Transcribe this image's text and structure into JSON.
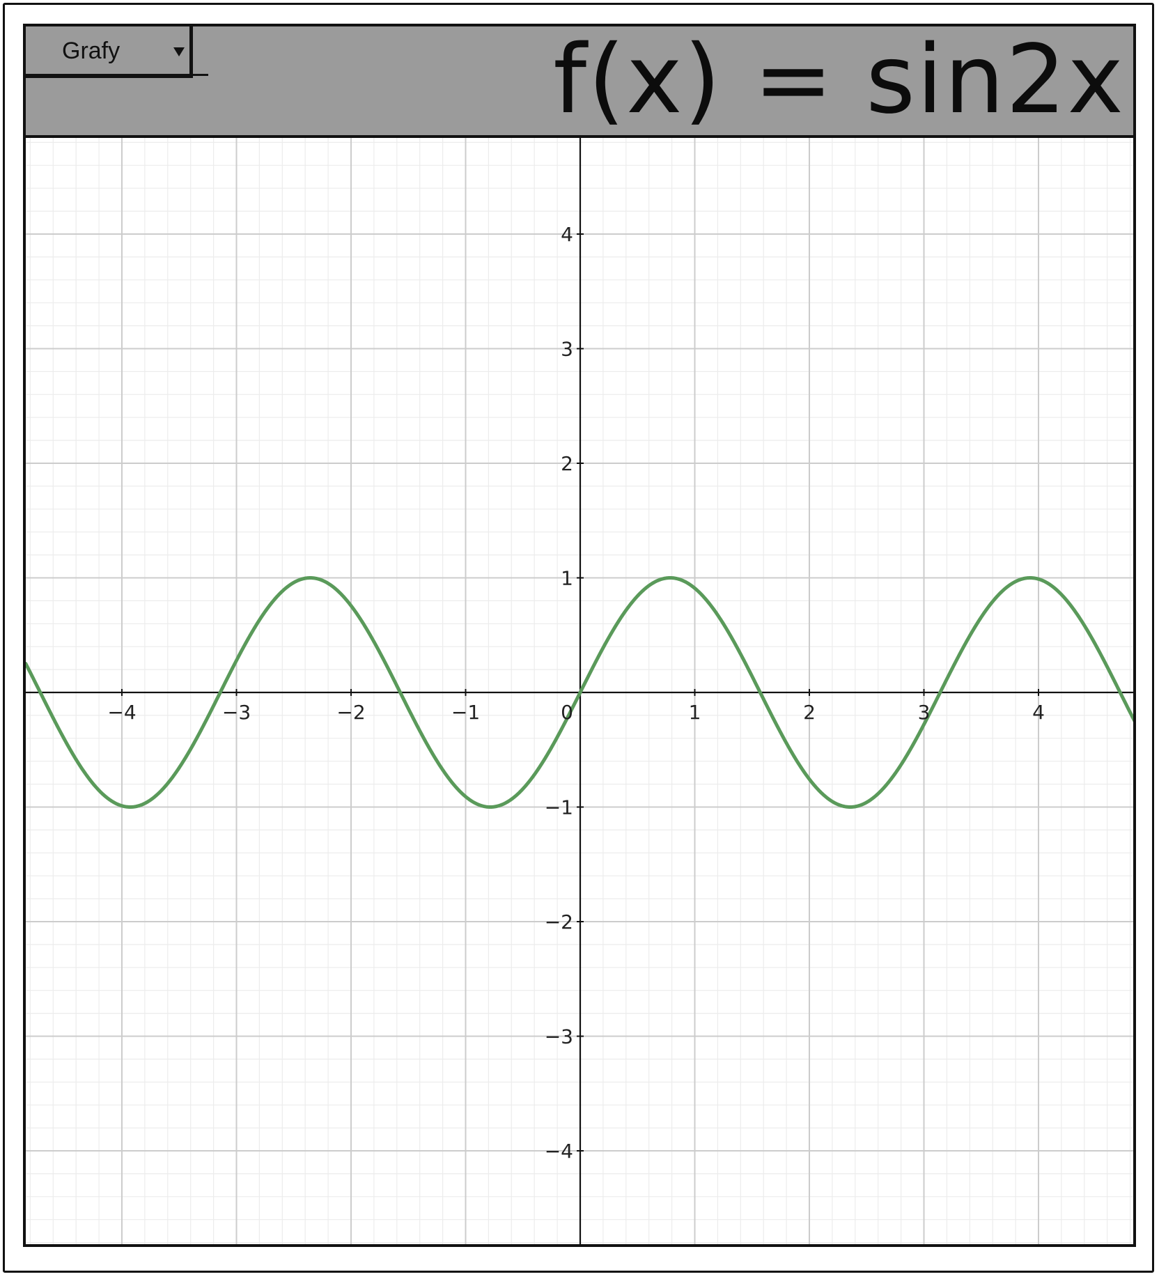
{
  "toolbar": {
    "dropdown_label": "Grafy"
  },
  "header": {
    "function_label": "f(x) = sin2x"
  },
  "chart_data": {
    "type": "line",
    "function": "sin(2x)",
    "title": "",
    "xlabel": "",
    "ylabel": "",
    "xlim": [
      -4.84,
      4.84
    ],
    "ylim": [
      -4.84,
      4.84
    ],
    "grid": true,
    "minor_grid": true,
    "x_ticks": [
      {
        "value": -4,
        "label": "−4"
      },
      {
        "value": -3,
        "label": "−3"
      },
      {
        "value": -2,
        "label": "−2"
      },
      {
        "value": -1,
        "label": "−1"
      },
      {
        "value": 1,
        "label": "1"
      },
      {
        "value": 2,
        "label": "2"
      },
      {
        "value": 3,
        "label": "3"
      },
      {
        "value": 4,
        "label": "4"
      }
    ],
    "y_ticks": [
      {
        "value": 4,
        "label": "4"
      },
      {
        "value": 3,
        "label": "3"
      },
      {
        "value": 2,
        "label": "2"
      },
      {
        "value": 1,
        "label": "1"
      },
      {
        "value": -1,
        "label": "−1"
      },
      {
        "value": -2,
        "label": "−2"
      },
      {
        "value": -3,
        "label": "−3"
      },
      {
        "value": -4,
        "label": "−4"
      }
    ],
    "origin_label": "0",
    "series": [
      {
        "color": "#5a9a5a"
      }
    ],
    "colors": {
      "major_grid": "#cccccc",
      "minor_grid": "#ececec",
      "axis": "#111111"
    }
  }
}
